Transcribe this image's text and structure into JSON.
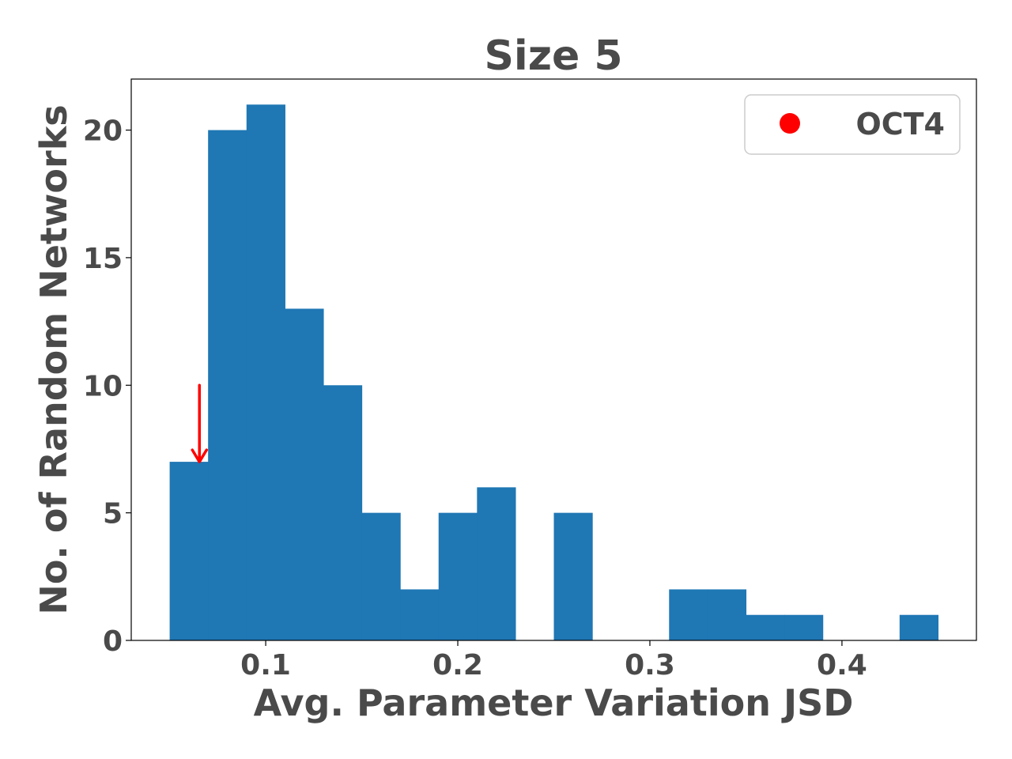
{
  "chart_data": {
    "type": "bar",
    "title": "Size 5",
    "xlabel": "Avg. Parameter Variation JSD",
    "ylabel": "No. of Random Networks",
    "xlim": [
      0.03,
      0.47
    ],
    "ylim": [
      0,
      22
    ],
    "xticks": [
      0.1,
      0.2,
      0.3,
      0.4
    ],
    "xtick_labels": [
      "0.1",
      "0.2",
      "0.3",
      "0.4"
    ],
    "yticks": [
      0,
      5,
      10,
      15,
      20
    ],
    "ytick_labels": [
      "0",
      "5",
      "10",
      "15",
      "20"
    ],
    "grid": false,
    "bar_color": "#1f77b4",
    "bins": [
      {
        "x0": 0.05,
        "x1": 0.07,
        "count": 7
      },
      {
        "x0": 0.07,
        "x1": 0.09,
        "count": 20
      },
      {
        "x0": 0.09,
        "x1": 0.11,
        "count": 21
      },
      {
        "x0": 0.11,
        "x1": 0.13,
        "count": 13
      },
      {
        "x0": 0.13,
        "x1": 0.15,
        "count": 10
      },
      {
        "x0": 0.15,
        "x1": 0.17,
        "count": 5
      },
      {
        "x0": 0.17,
        "x1": 0.19,
        "count": 2
      },
      {
        "x0": 0.19,
        "x1": 0.21,
        "count": 5
      },
      {
        "x0": 0.21,
        "x1": 0.23,
        "count": 6
      },
      {
        "x0": 0.23,
        "x1": 0.25,
        "count": 0
      },
      {
        "x0": 0.25,
        "x1": 0.27,
        "count": 5
      },
      {
        "x0": 0.27,
        "x1": 0.29,
        "count": 0
      },
      {
        "x0": 0.29,
        "x1": 0.31,
        "count": 0
      },
      {
        "x0": 0.31,
        "x1": 0.33,
        "count": 2
      },
      {
        "x0": 0.33,
        "x1": 0.35,
        "count": 2
      },
      {
        "x0": 0.35,
        "x1": 0.37,
        "count": 1
      },
      {
        "x0": 0.37,
        "x1": 0.39,
        "count": 1
      },
      {
        "x0": 0.39,
        "x1": 0.41,
        "count": 0
      },
      {
        "x0": 0.41,
        "x1": 0.43,
        "count": 0
      },
      {
        "x0": 0.43,
        "x1": 0.45,
        "count": 1
      }
    ],
    "marker": {
      "name": "OCT4",
      "x": 0.0655,
      "y_from": 10,
      "y_to": 7,
      "color": "#ff0000"
    },
    "legend": {
      "position": "top-right",
      "entries": [
        {
          "label": "OCT4",
          "color": "#ff0000",
          "symbol": "circle"
        }
      ]
    }
  }
}
